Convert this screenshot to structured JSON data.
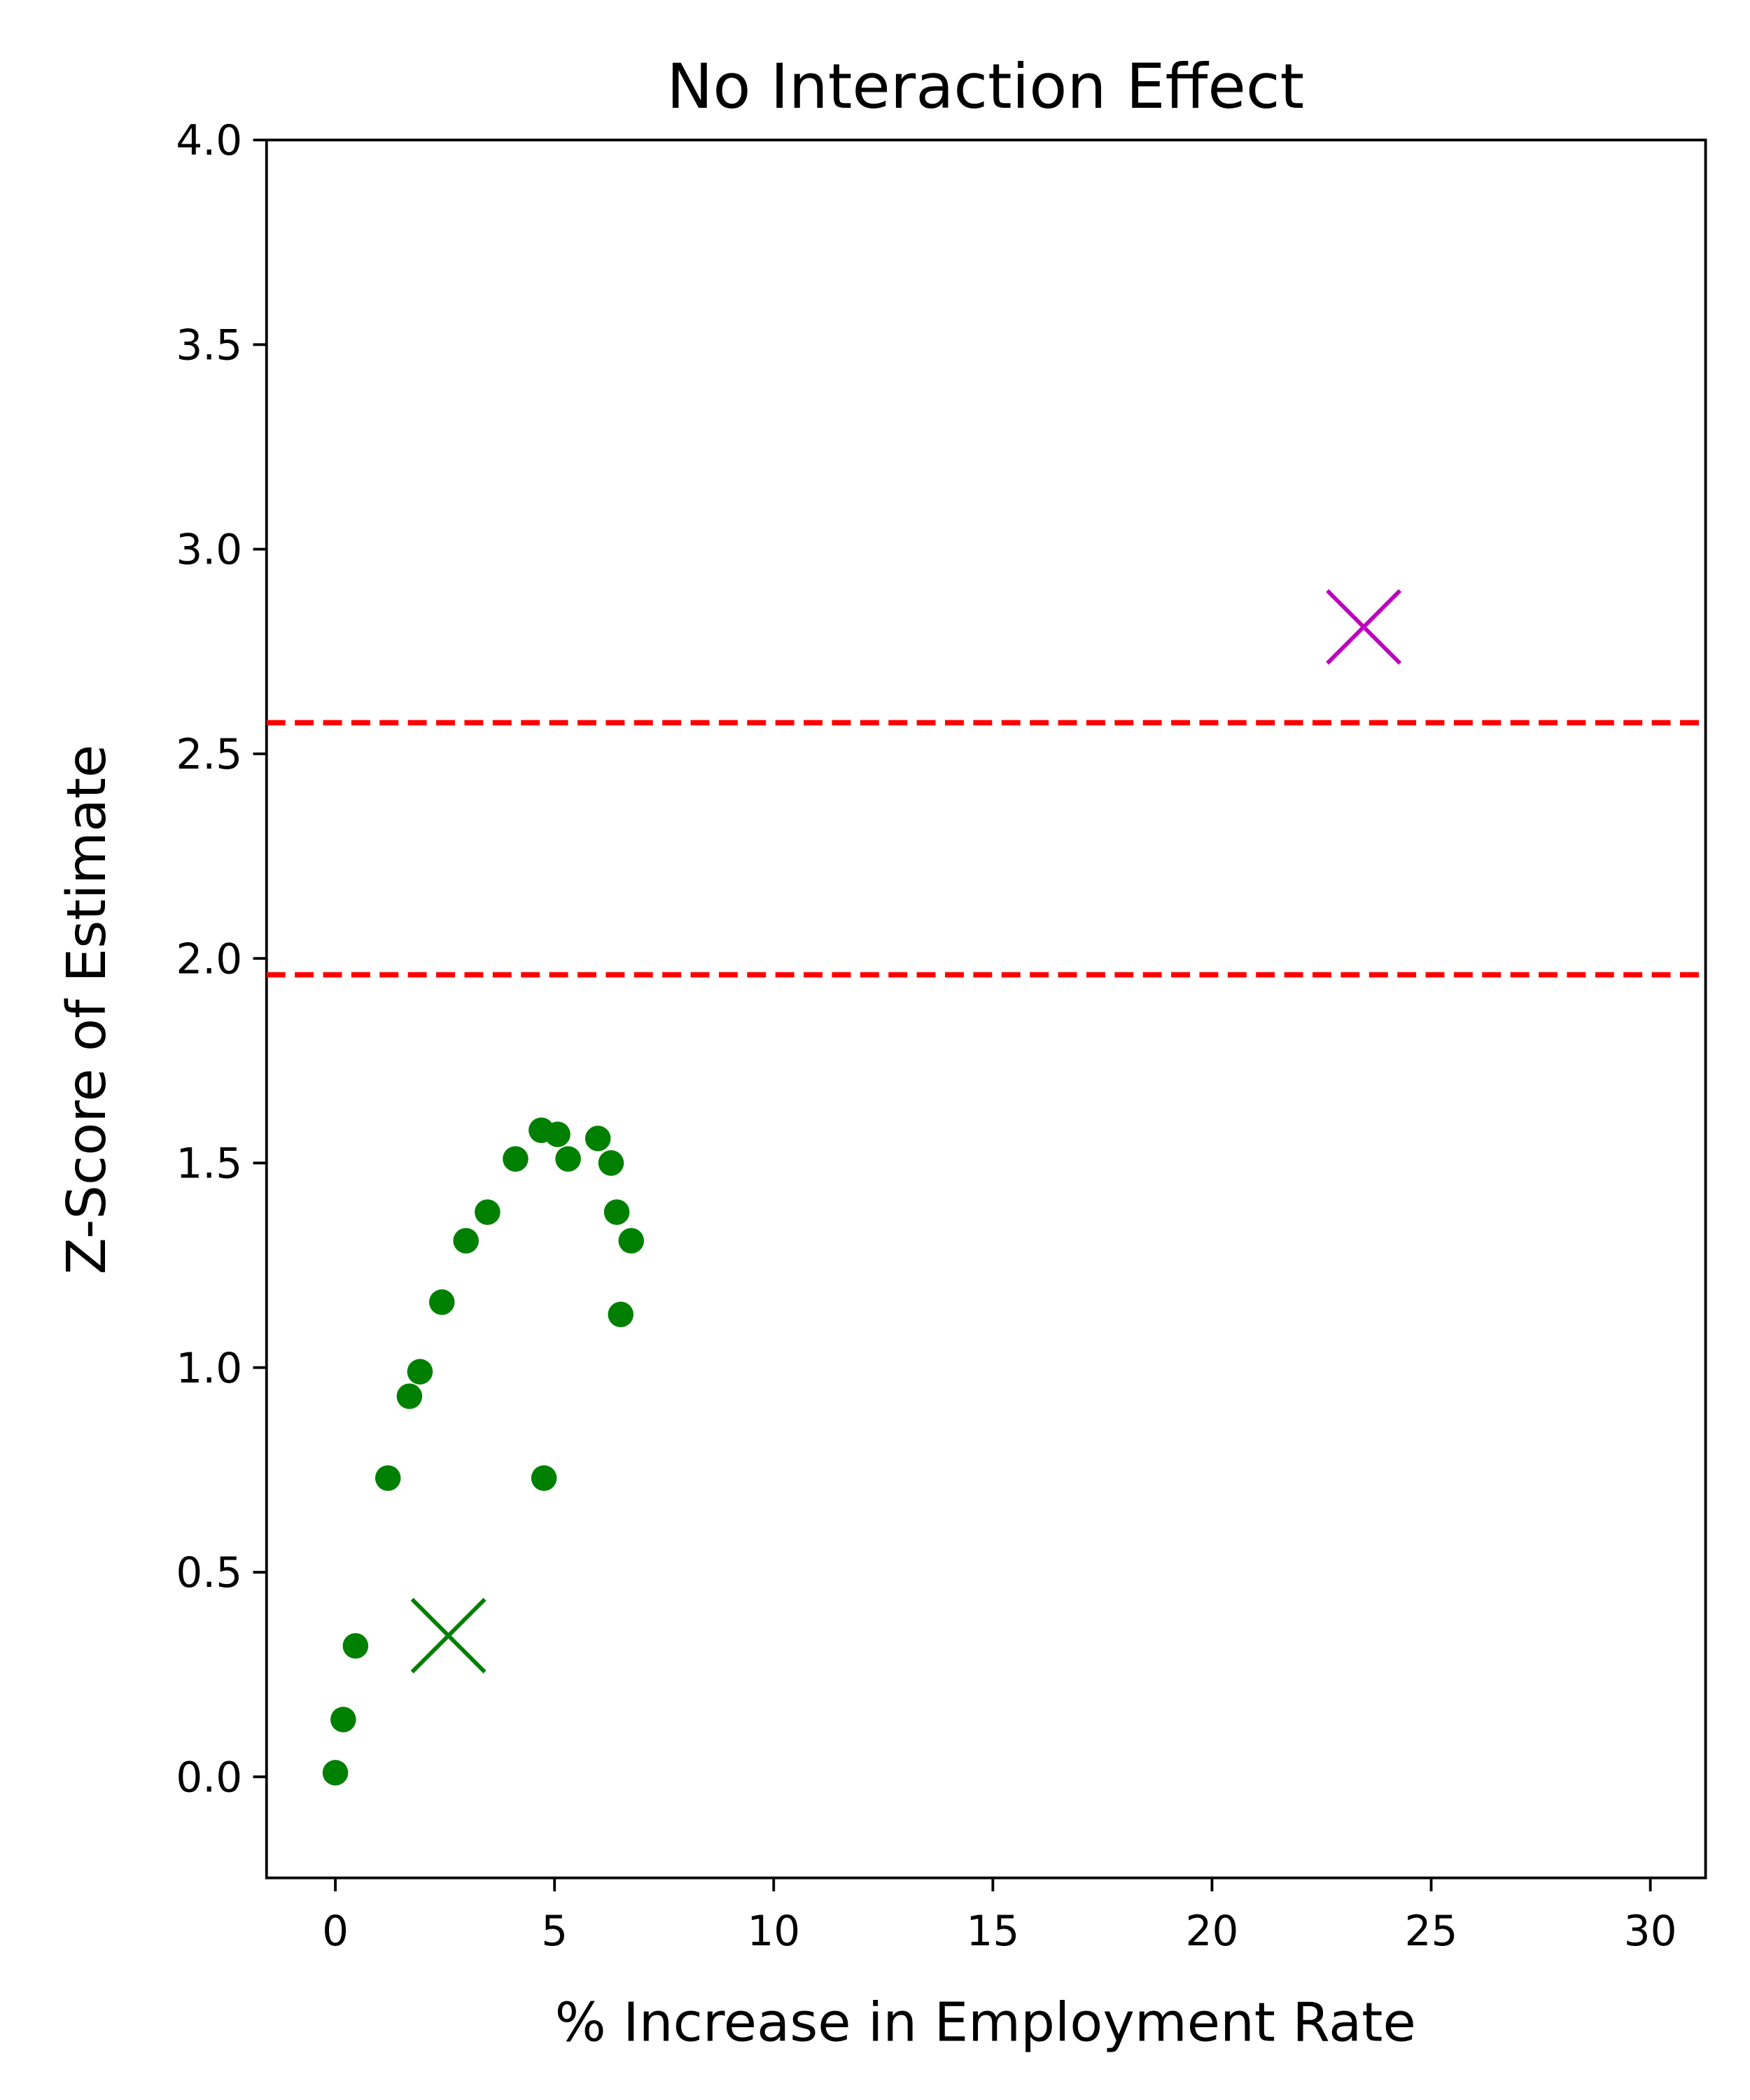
{
  "chart_data": {
    "type": "scatter",
    "title": "No Interaction Effect",
    "x_label": "% Increase in Employment Rate",
    "y_label": "Z-Score of Estimate",
    "xlim": [
      -1.57,
      31.26
    ],
    "ylim": [
      -0.247,
      4.0
    ],
    "xticks": [
      0,
      5,
      10,
      15,
      20,
      25,
      30
    ],
    "yticks": [
      {
        "value": 0,
        "label": "0.0"
      },
      {
        "value": 0.5,
        "label": "0.5"
      },
      {
        "value": 1,
        "label": "1.0"
      },
      {
        "value": 1.5,
        "label": "1.5"
      },
      {
        "value": 2,
        "label": "2.0"
      },
      {
        "value": 2.5,
        "label": "2.5"
      },
      {
        "value": 3,
        "label": "3.0"
      },
      {
        "value": 3.5,
        "label": "3.5"
      },
      {
        "value": 4,
        "label": "4.0"
      }
    ],
    "grid": false,
    "hlines": [
      {
        "value": 1.96,
        "color": "#ff0000",
        "style": "dashed"
      },
      {
        "value": 2.576,
        "color": "#ff0000",
        "style": "dashed"
      }
    ],
    "series": [
      {
        "color": "#008000",
        "marker": "o",
        "x": [
          0.0,
          0.18,
          0.46,
          1.2,
          1.69,
          1.93,
          2.43,
          2.98,
          3.47,
          4.11,
          4.7,
          4.76,
          5.07,
          5.31,
          5.99,
          6.29,
          6.42,
          6.51,
          6.75
        ],
        "values": [
          0.01,
          0.14,
          0.32,
          0.73,
          0.93,
          0.99,
          1.16,
          1.31,
          1.38,
          1.51,
          1.58,
          0.73,
          1.57,
          1.51,
          1.56,
          1.5,
          1.38,
          1.13,
          1.31
        ]
      },
      {
        "color": "#008000",
        "marker": "x",
        "x": [
          2.58
        ],
        "values": [
          0.345
        ]
      },
      {
        "color": "#bf00bf",
        "marker": "x",
        "x": [
          23.46
        ],
        "values": [
          2.81
        ]
      }
    ]
  }
}
